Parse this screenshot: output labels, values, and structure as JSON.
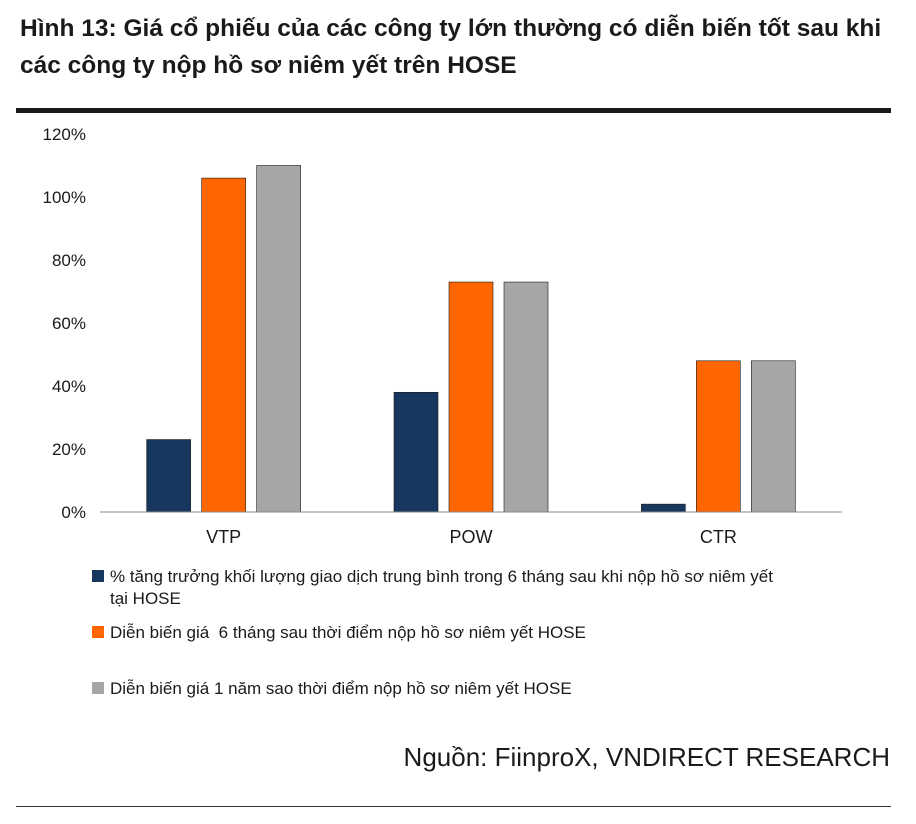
{
  "header": {
    "title": "Hình 13: Giá cổ phiếu của các công ty lớn thường có diễn biến tốt sau khi các công ty nộp hồ sơ niêm yết trên HOSE"
  },
  "source": "Nguồn: FiinproX, VNDIRECT RESEARCH",
  "colors": {
    "series1": "#17375e",
    "series2": "#ff6600",
    "series3": "#a6a6a6",
    "axis": "#888888"
  },
  "chart_data": {
    "type": "bar",
    "categories": [
      "VTP",
      "POW",
      "CTR"
    ],
    "ylim": [
      0,
      120
    ],
    "yticks": [
      "0%",
      "20%",
      "40%",
      "60%",
      "80%",
      "100%",
      "120%"
    ],
    "grid": false,
    "legend_position": "bottom",
    "series": [
      {
        "name": "% tăng trưởng khối lượng giao dịch trung bình trong 6 tháng sau khi nộp hồ sơ niêm yết tại HOSE",
        "values": [
          23,
          38,
          2.5
        ],
        "color": "#17375e"
      },
      {
        "name": "Diễn biến giá  6 tháng sau thời điểm nộp hồ sơ niêm yết HOSE",
        "values": [
          106,
          73,
          48
        ],
        "color": "#ff6600"
      },
      {
        "name": "Diễn biến giá 1 năm sao thời điểm nộp hồ sơ niêm yết HOSE",
        "values": [
          110,
          73,
          48
        ],
        "color": "#a6a6a6"
      }
    ]
  }
}
